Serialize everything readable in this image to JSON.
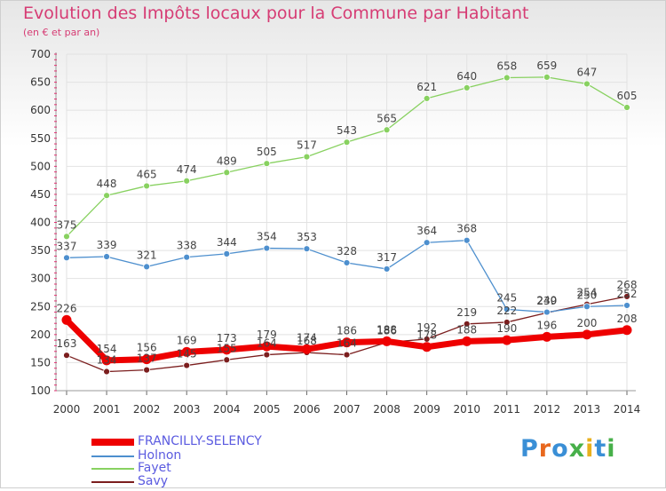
{
  "title": "Evolution des Impôts locaux pour la Commune par Habitant",
  "subtitle": "(en € et par an)",
  "logo": {
    "text": "Proxiti",
    "colors": [
      "#3a8fd6",
      "#e8681e",
      "#3a8fd6",
      "#47b04a",
      "#e8b01e",
      "#3a8fd6",
      "#47b04a"
    ]
  },
  "chart_data": {
    "type": "line",
    "x": [
      2000,
      2001,
      2002,
      2003,
      2004,
      2005,
      2006,
      2007,
      2008,
      2009,
      2010,
      2011,
      2012,
      2013,
      2014
    ],
    "ylim": [
      100,
      700
    ],
    "yticks": [
      100,
      150,
      200,
      250,
      300,
      350,
      400,
      450,
      500,
      550,
      600,
      650,
      700
    ],
    "grid": true,
    "legend_position": "bottom-left",
    "series": [
      {
        "name": "FRANCILLY-SELENCY",
        "color": "#ee0000",
        "values": [
          226,
          154,
          156,
          169,
          173,
          179,
          174,
          186,
          188,
          178,
          188,
          190,
          196,
          200,
          208
        ]
      },
      {
        "name": "Holnon",
        "color": "#4d8fce",
        "values": [
          337,
          339,
          321,
          338,
          344,
          354,
          353,
          328,
          317,
          364,
          368,
          245,
          240,
          250,
          252
        ]
      },
      {
        "name": "Fayet",
        "color": "#88d160",
        "values": [
          375,
          448,
          465,
          474,
          489,
          505,
          517,
          543,
          565,
          621,
          640,
          658,
          659,
          647,
          605
        ]
      },
      {
        "name": "Savy",
        "color": "#7b1e1e",
        "values": [
          163,
          134,
          137,
          145,
          155,
          164,
          168,
          164,
          186,
          192,
          219,
          222,
          239,
          254,
          268
        ]
      }
    ]
  }
}
